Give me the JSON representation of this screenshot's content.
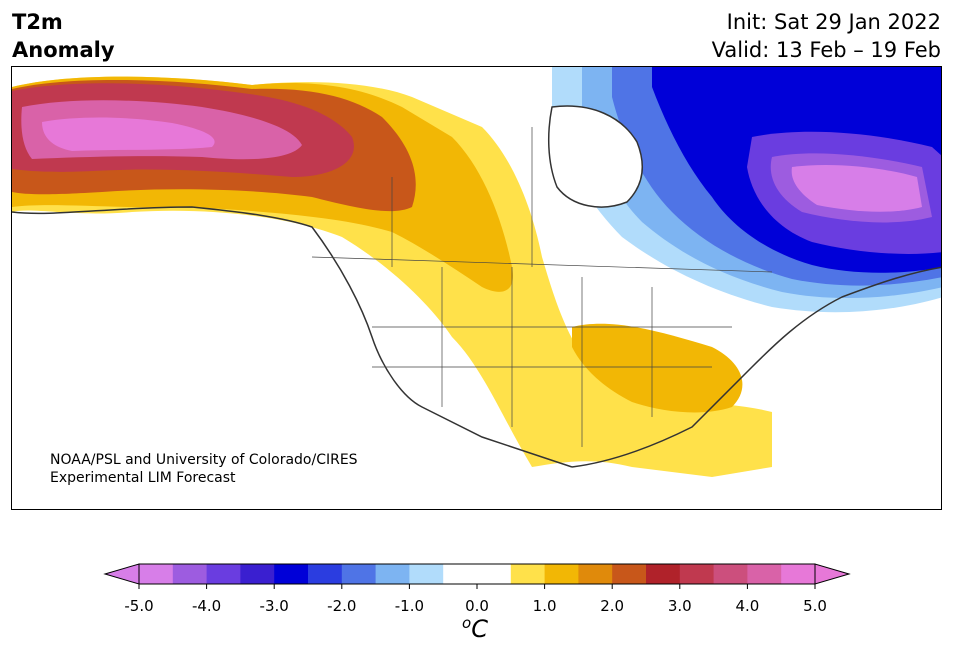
{
  "header": {
    "title_line1": "T2m",
    "title_line2": "Anomaly",
    "init": "Init: Sat 29 Jan 2022",
    "valid": "Valid: 13 Feb – 19 Feb"
  },
  "map": {
    "credit_line1": "NOAA/PSL and University of Colorado/CIRES",
    "credit_line2": "Experimental LIM Forecast"
  },
  "colorbar": {
    "colors": [
      "#d77ee8",
      "#9d5ce0",
      "#6a3de0",
      "#3a1fd0",
      "#0000d8",
      "#2b3de0",
      "#4f74e6",
      "#7db4f2",
      "#b1dcfb",
      "#ffffff",
      "#ffffff",
      "#ffe14a",
      "#f2b705",
      "#e08a0b",
      "#c8571a",
      "#b0222a",
      "#c0394f",
      "#cc4f7d",
      "#d962a8",
      "#e778d8"
    ],
    "ticks": [
      "-5.0",
      "-4.0",
      "-3.0",
      "-2.0",
      "-1.0",
      "0.0",
      "1.0",
      "2.0",
      "3.0",
      "4.0",
      "5.0"
    ],
    "unit_symbol": "o",
    "unit_letter": "C"
  }
}
